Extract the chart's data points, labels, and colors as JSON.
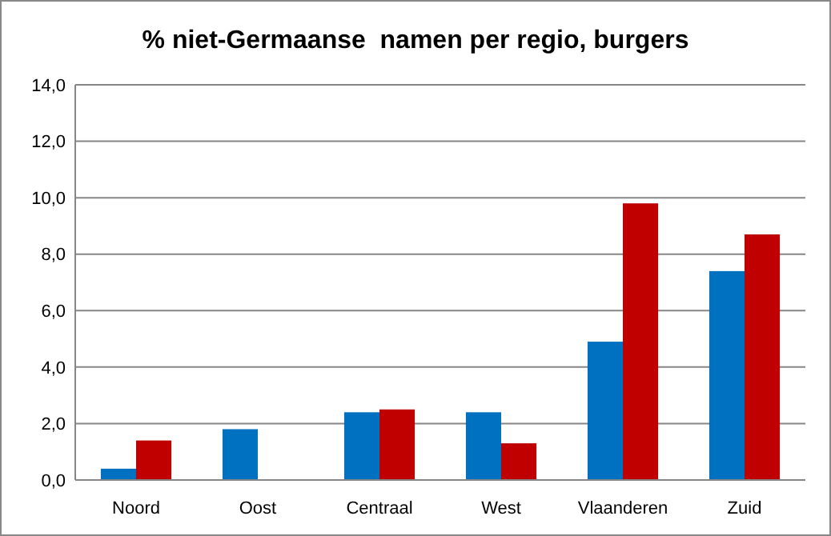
{
  "chart_data": {
    "type": "bar",
    "title": "% niet-Germaanse  namen per regio, burgers",
    "categories": [
      "Noord",
      "Oost",
      "Centraal",
      "West",
      "Vlaanderen",
      "Zuid"
    ],
    "series": [
      {
        "color": "#0070c0",
        "values": [
          0.4,
          1.8,
          2.4,
          2.4,
          4.9,
          7.4
        ]
      },
      {
        "color": "#c00000",
        "values": [
          1.4,
          null,
          2.5,
          1.3,
          9.8,
          8.7
        ]
      }
    ],
    "ylim": [
      0,
      14
    ],
    "yticks": [
      {
        "value": 0,
        "label": "0,0"
      },
      {
        "value": 2,
        "label": "2,0"
      },
      {
        "value": 4,
        "label": "4,0"
      },
      {
        "value": 6,
        "label": "6,0"
      },
      {
        "value": 8,
        "label": "8,0"
      },
      {
        "value": 10,
        "label": "10,0"
      },
      {
        "value": 12,
        "label": "12,0"
      },
      {
        "value": 14,
        "label": "14,0"
      }
    ],
    "grid": "y"
  }
}
